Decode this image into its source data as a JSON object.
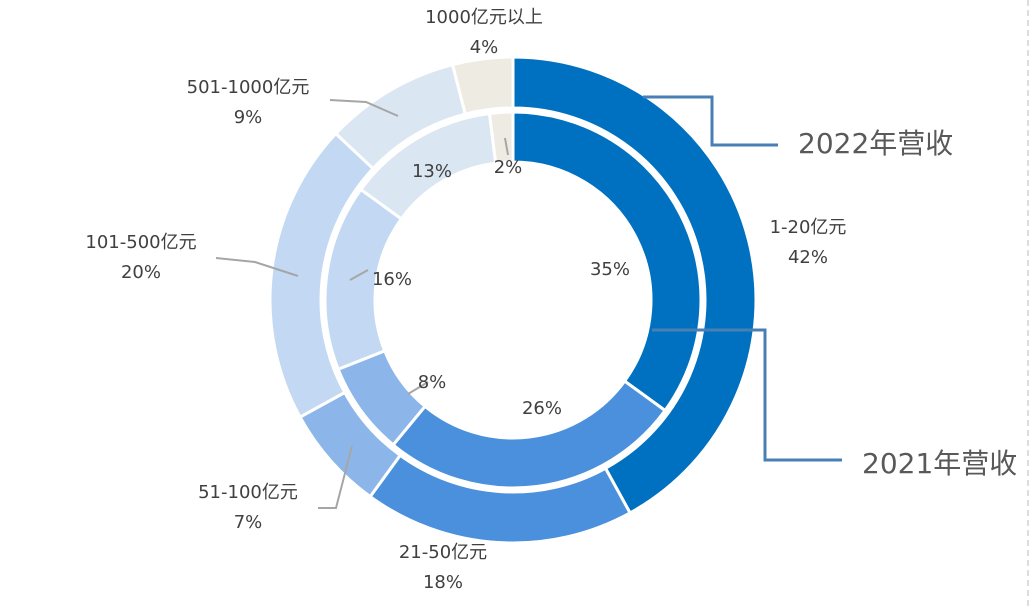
{
  "chart_data": {
    "type": "donut",
    "categories": [
      "1-20亿元",
      "21-50亿元",
      "51-100亿元",
      "101-500亿元",
      "501-1000亿元",
      "1000亿元以上"
    ],
    "colors": [
      "#0070c0",
      "#4a90dc",
      "#8cb6ea",
      "#c3d8f2",
      "#dbe6f3",
      "#eeece2"
    ],
    "series": [
      {
        "name": "2022年营收",
        "values": [
          42,
          18,
          7,
          20,
          9,
          4
        ],
        "value_labels": [
          "42%",
          "18%",
          "7%",
          "20%",
          "9%",
          "4%"
        ]
      },
      {
        "name": "2021年营收",
        "values": [
          35,
          26,
          8,
          16,
          13,
          2
        ],
        "value_labels": [
          "35%",
          "26%",
          "8%",
          "16%",
          "13%",
          "2%"
        ]
      }
    ]
  }
}
